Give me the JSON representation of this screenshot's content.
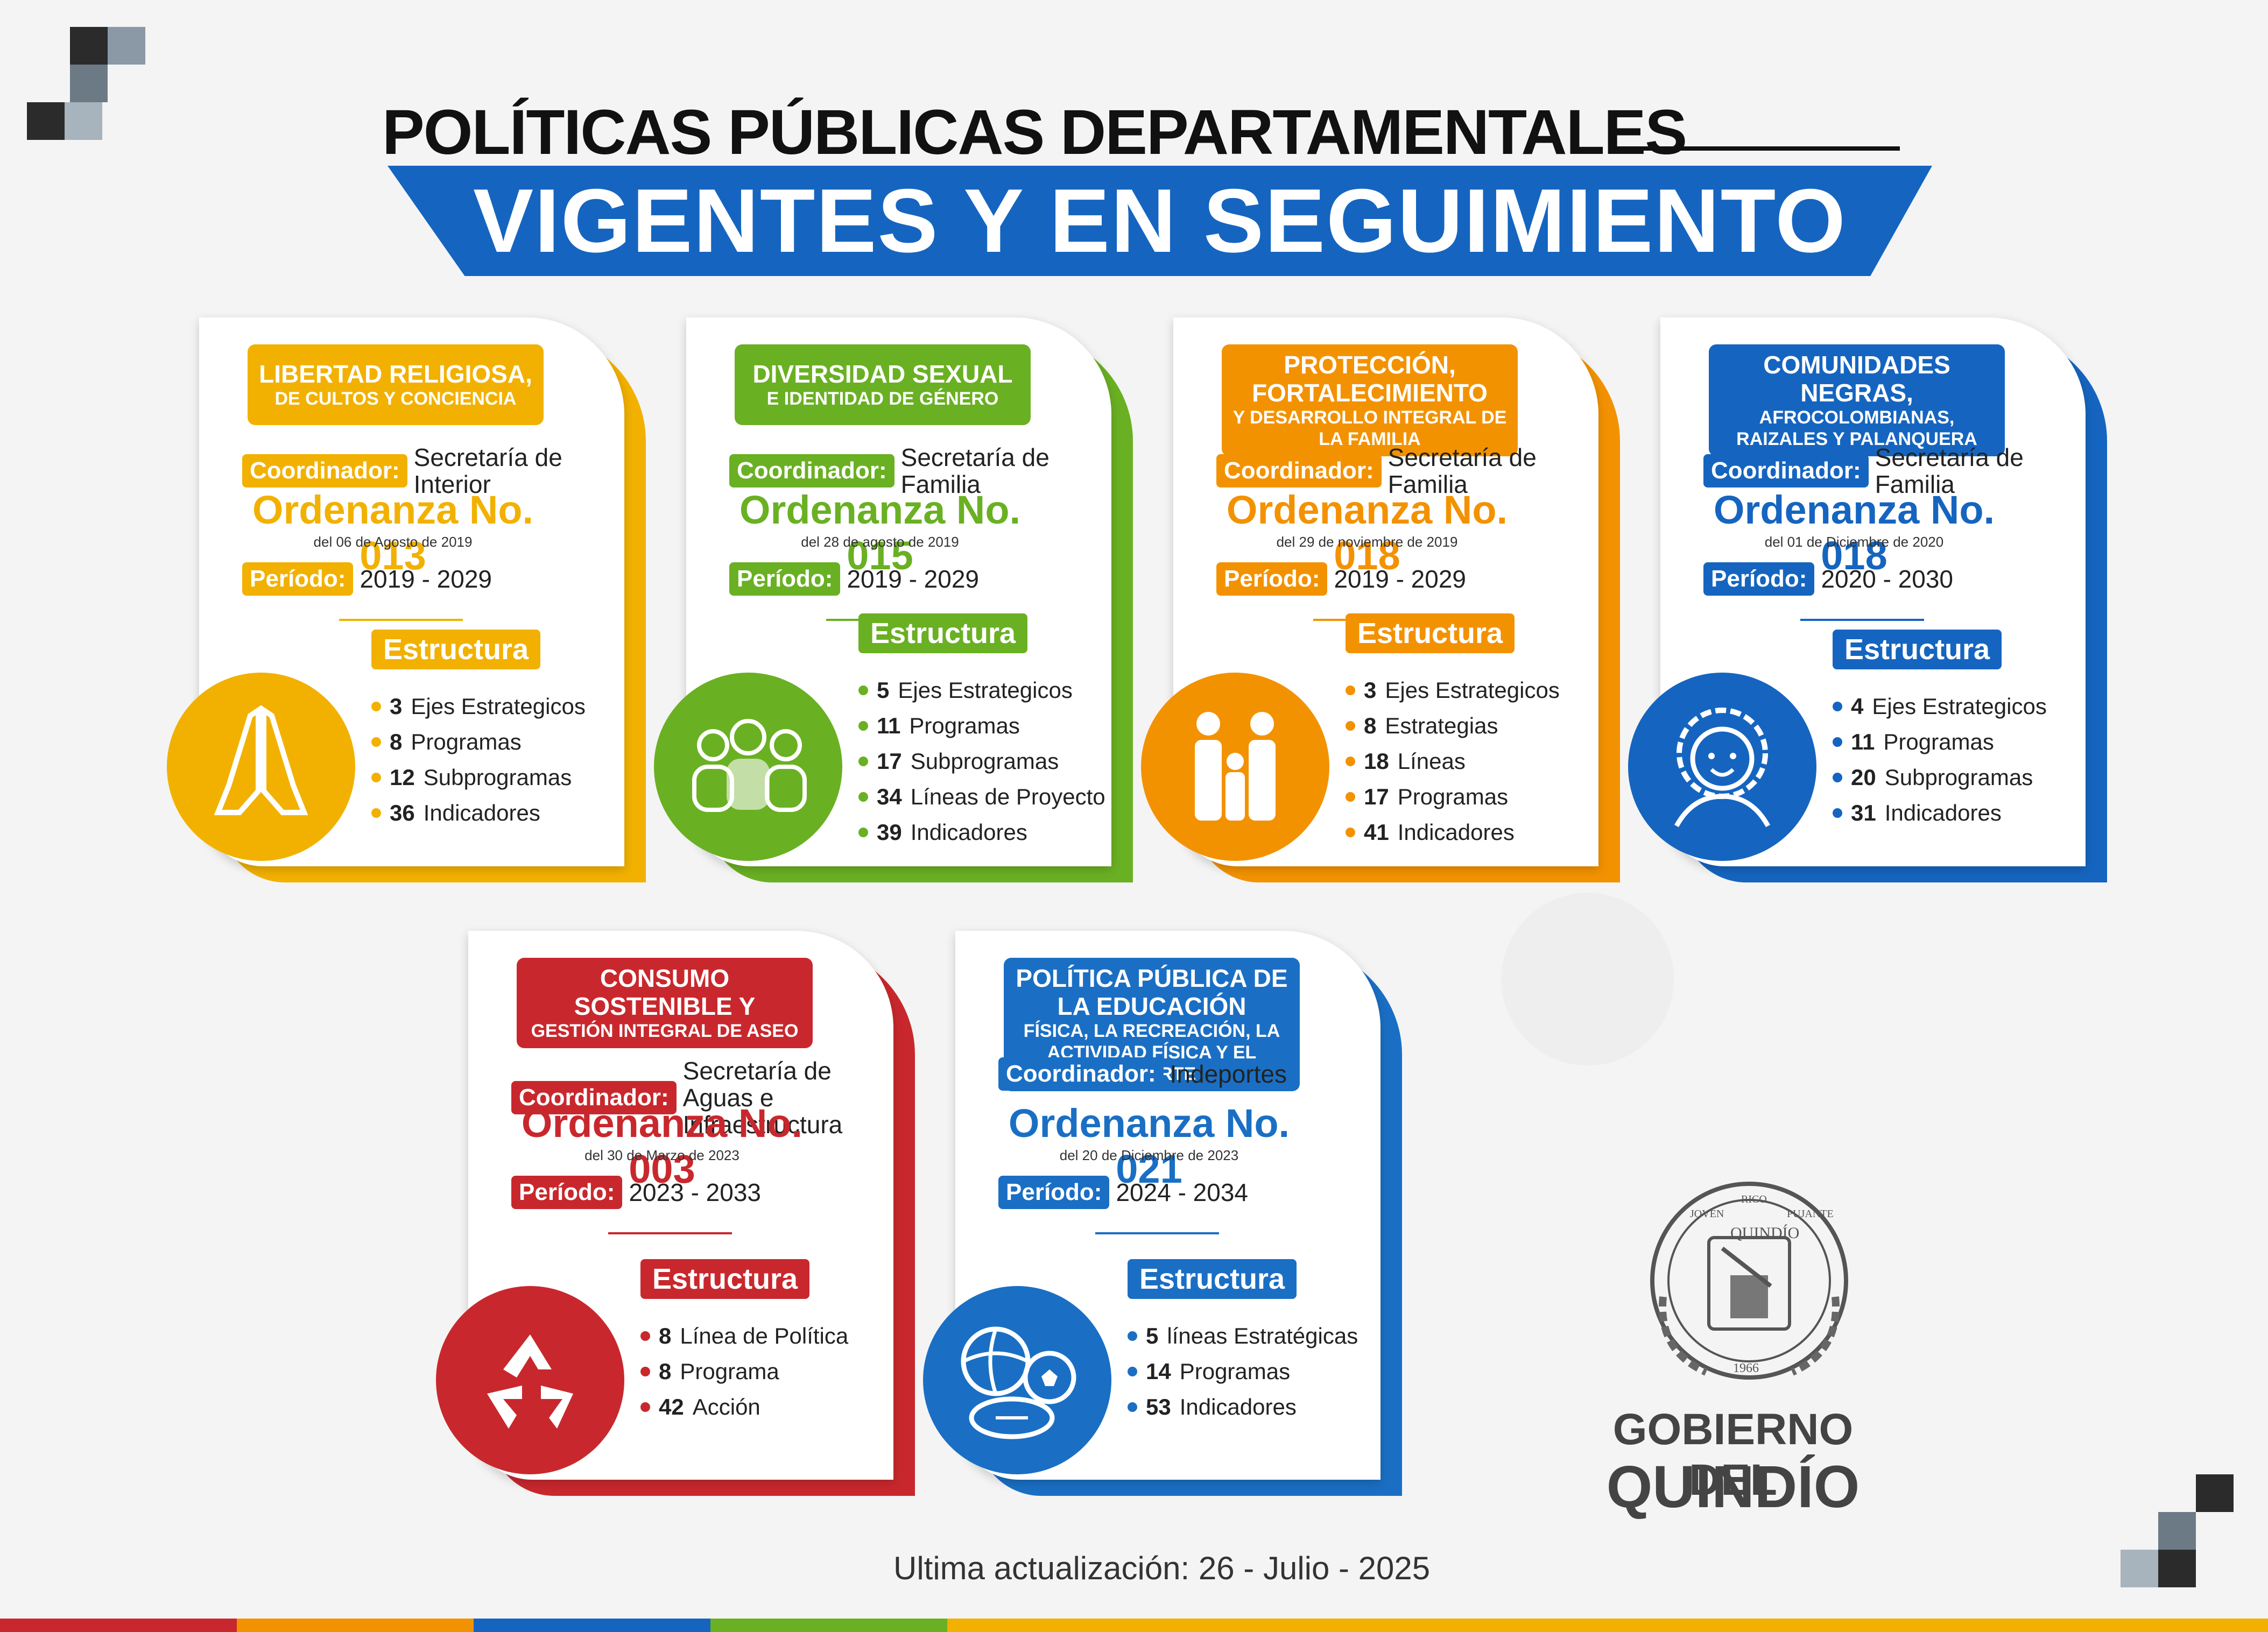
{
  "title_top": "POLÍTICAS PÚBLICAS DEPARTAMENTALES",
  "title_banner": "VIGENTES Y EN SEGUIMIENTO",
  "labels": {
    "coordinador": "Coordinador:",
    "periodo": "Período:",
    "estructura": "Estructura"
  },
  "colors": {
    "yellow": "#f2b100",
    "green": "#6ab023",
    "orange": "#f39200",
    "blue": "#1565c0",
    "red": "#c8282d",
    "blue2": "#1a6fc4"
  },
  "cards": [
    {
      "title1": "LIBERTAD RELIGIOSA,",
      "title2": "DE CULTOS Y CONCIENCIA",
      "coordinador": "Secretaría de Interior",
      "ordenanza": "Ordenanza No. 013",
      "fecha": "del 06 de Agosto de 2019",
      "periodo": "2019 - 2029",
      "items": [
        {
          "n": "3",
          "t": "Ejes Estrategicos"
        },
        {
          "n": "8",
          "t": "Programas"
        },
        {
          "n": "12",
          "t": "Subprogramas"
        },
        {
          "n": "36",
          "t": "Indicadores"
        }
      ],
      "icon": "praying-hands-icon"
    },
    {
      "title1": "DIVERSIDAD SEXUAL",
      "title2": "E IDENTIDAD DE GÉNERO",
      "coordinador": "Secretaría de Familia",
      "ordenanza": "Ordenanza No. 015",
      "fecha": "del 28 de agosto de 2019",
      "periodo": "2019 - 2029",
      "items": [
        {
          "n": "5",
          "t": "Ejes Estrategicos"
        },
        {
          "n": "11",
          "t": "Programas"
        },
        {
          "n": "17",
          "t": "Subprogramas"
        },
        {
          "n": "34",
          "t": "Líneas de Proyecto"
        },
        {
          "n": "39",
          "t": "Indicadores"
        }
      ],
      "icon": "people-group-icon"
    },
    {
      "title1": "PROTECCIÓN, FORTALECIMIENTO",
      "title2": "Y DESARROLLO INTEGRAL DE LA FAMILIA",
      "coordinador": "Secretaría de Familia",
      "ordenanza": "Ordenanza No. 018",
      "fecha": "del 29 de noviembre de 2019",
      "periodo": "2019 - 2029",
      "items": [
        {
          "n": "3",
          "t": "Ejes Estrategicos"
        },
        {
          "n": "8",
          "t": "Estrategias"
        },
        {
          "n": "18",
          "t": "Líneas"
        },
        {
          "n": "17",
          "t": "Programas"
        },
        {
          "n": "41",
          "t": "Indicadores"
        }
      ],
      "icon": "family-icon"
    },
    {
      "title1": "COMUNIDADES NEGRAS,",
      "title2": "AFROCOLOMBIANAS, RAIZALES Y PALANQUERA",
      "coordinador": "Secretaría de Familia",
      "ordenanza": "Ordenanza No. 018",
      "fecha": "del 01 de Diciembre de 2020",
      "periodo": "2020 - 2030",
      "items": [
        {
          "n": "4",
          "t": "Ejes Estrategicos"
        },
        {
          "n": "11",
          "t": "Programas"
        },
        {
          "n": "20",
          "t": "Subprogramas"
        },
        {
          "n": "31",
          "t": "Indicadores"
        }
      ],
      "icon": "person-face-icon"
    },
    {
      "title1": "CONSUMO SOSTENIBLE Y",
      "title2": "GESTIÓN INTEGRAL DE ASEO",
      "coordinador": "Secretaría de Aguas e Infraestructura",
      "ordenanza": "Ordenanza No. 003",
      "fecha": "del 30 de Marzo de 2023",
      "periodo": "2023 - 2033",
      "items": [
        {
          "n": "8",
          "t": "Línea de Política"
        },
        {
          "n": "8",
          "t": "Programa"
        },
        {
          "n": "42",
          "t": "Acción"
        }
      ],
      "icon": "recycle-icon"
    },
    {
      "title1": "POLÍTICA PÚBLICA DE LA EDUCACIÓN",
      "title2": "FÍSICA, LA RECREACIÓN, LA ACTIVIDAD FÍSICA Y EL DEPORTE",
      "coordinador": "Indeportes",
      "ordenanza": "Ordenanza No. 021",
      "fecha": "del 20 de Diciembre de 2023",
      "periodo": "2024 - 2034",
      "items": [
        {
          "n": "5",
          "t": "líneas Estratégicas"
        },
        {
          "n": "14",
          "t": "Programas"
        },
        {
          "n": "53",
          "t": "Indicadores"
        }
      ],
      "icon": "sports-balls-icon"
    }
  ],
  "logo": {
    "line1": "GOBIERNO DEL",
    "line2": "QUINDÍO",
    "seal_text": "QUINDÍO",
    "seal_year": "1966",
    "seal_words": [
      "JOVEN",
      "RICO",
      "PUJANTE"
    ]
  },
  "footer": "Ultima actualización:  26 - Julio - 2025"
}
